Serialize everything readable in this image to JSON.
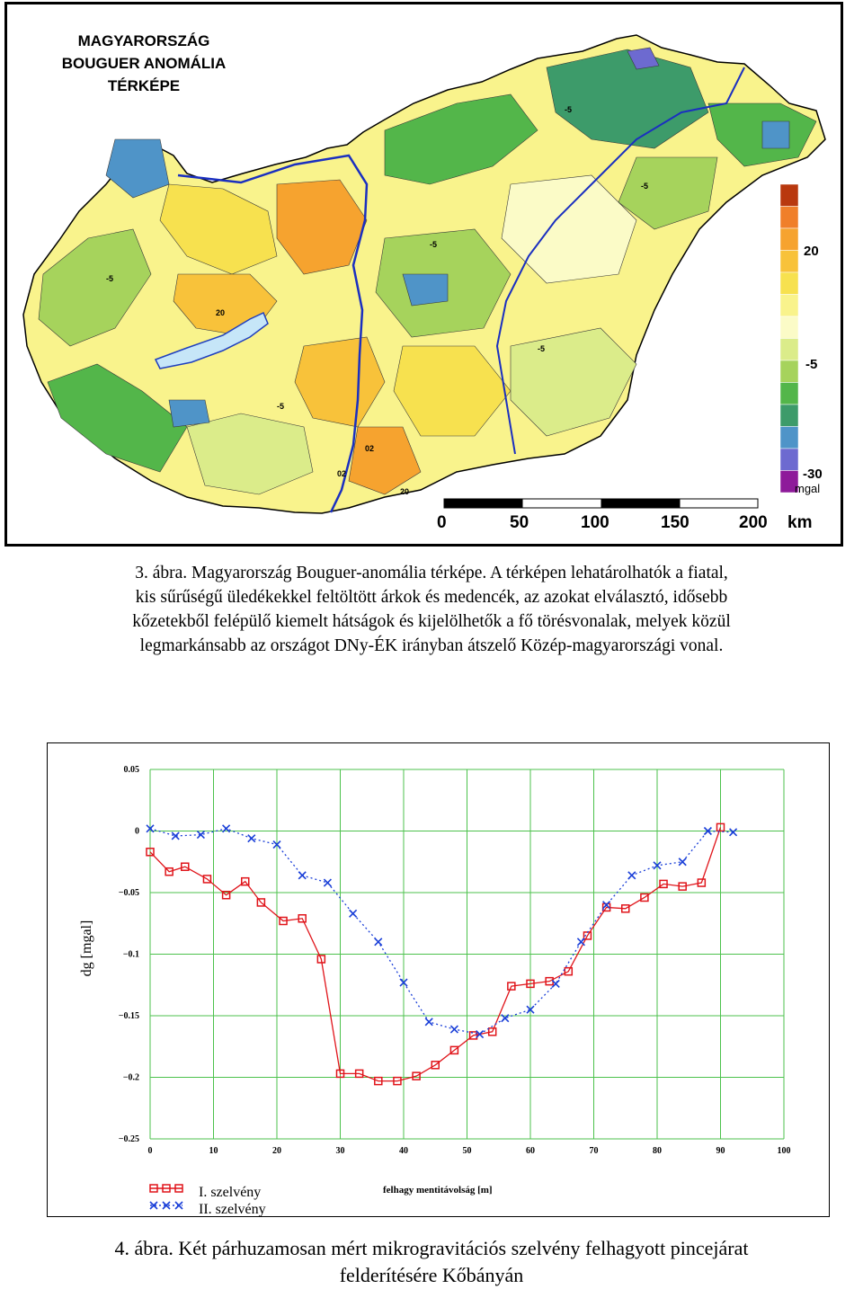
{
  "figure3": {
    "title_lines": [
      "MAGYARORSZÁG",
      "BOUGUER ANOMÁLIA",
      "TÉRKÉPE"
    ],
    "legend": {
      "colors": [
        "#b9380e",
        "#f07f2a",
        "#f6a32f",
        "#f8c23a",
        "#f7e14f",
        "#f9f38c",
        "#fbfbc7",
        "#dbec8a",
        "#a6d35c",
        "#53b64a",
        "#3d9b6a",
        "#4f94c8",
        "#6d6ad0",
        "#8e1a9a"
      ],
      "label_20": "20",
      "label_m5": "-5",
      "label_m30": "-30",
      "unit": "mgal"
    },
    "contour_labels": [
      "-5",
      "20",
      "02"
    ],
    "scale": {
      "ticks": [
        "0",
        "50",
        "100",
        "150",
        "200"
      ],
      "unit": "km"
    },
    "caption_lines": [
      "3. ábra. Magyarország Bouguer-anomália térképe. A térképen lehatárolhatók a fiatal,",
      "kis sűrűségű üledékekkel feltöltött árkok és medencék, az azokat elválasztó, idősebb",
      "kőzetekből felépülő kiemelt hátságok és kijelölhetők a fő törésvonalak, melyek közül",
      "legmarkánsabb az országot DNy-ÉK irányban átszelő Közép-magyarországi vonal."
    ]
  },
  "chart_data": {
    "type": "line",
    "title": "",
    "xlabel": "felhagy mentitávolság [m]",
    "ylabel": "dg [mgal]",
    "xlim": [
      0,
      100
    ],
    "ylim": [
      -0.25,
      0.05
    ],
    "xticks": [
      0,
      10,
      20,
      30,
      40,
      50,
      60,
      70,
      80,
      90,
      100
    ],
    "yticks": [
      0.05,
      0,
      -0.05,
      -0.1,
      -0.15,
      -0.2,
      -0.25
    ],
    "ytick_labels": [
      "0.05",
      "0",
      "−0.05",
      "−0.1",
      "−0.15",
      "−0.2",
      "−0.25"
    ],
    "grid": true,
    "legend_position": "bottom-left",
    "series": [
      {
        "name": "I. szelvény",
        "color": "#e0141a",
        "marker": "square",
        "x": [
          0,
          3,
          5.5,
          9,
          12,
          15,
          17.5,
          21,
          24,
          27,
          30,
          33,
          36,
          39,
          42,
          45,
          48,
          51,
          54,
          57,
          60,
          63,
          66,
          69,
          72,
          75,
          78,
          81,
          84,
          87,
          90
        ],
        "y": [
          -0.017,
          -0.033,
          -0.029,
          -0.039,
          -0.052,
          -0.041,
          -0.058,
          -0.073,
          -0.071,
          -0.104,
          -0.197,
          -0.197,
          -0.203,
          -0.203,
          -0.199,
          -0.19,
          -0.178,
          -0.166,
          -0.163,
          -0.126,
          -0.124,
          -0.122,
          -0.114,
          -0.085,
          -0.062,
          -0.063,
          -0.054,
          -0.043,
          -0.045,
          -0.042,
          0.003
        ]
      },
      {
        "name": "II. szelvény",
        "color": "#1a3fd8",
        "marker": "x",
        "x": [
          0,
          4,
          8,
          12,
          16,
          20,
          24,
          28,
          32,
          36,
          40,
          44,
          48,
          52,
          56,
          60,
          64,
          68,
          72,
          76,
          80,
          84,
          88,
          92
        ],
        "y": [
          0.002,
          -0.004,
          -0.003,
          0.002,
          -0.006,
          -0.011,
          -0.036,
          -0.042,
          -0.067,
          -0.09,
          -0.123,
          -0.155,
          -0.161,
          -0.165,
          -0.152,
          -0.145,
          -0.124,
          -0.09,
          -0.06,
          -0.036,
          -0.028,
          -0.025,
          0,
          -0.001
        ]
      }
    ]
  },
  "figure4": {
    "caption_lines": [
      "4. ábra. Két párhuzamosan mért mikrogravitációs szelvény felhagyott pincejárat",
      "felderítésére Kőbányán"
    ]
  }
}
